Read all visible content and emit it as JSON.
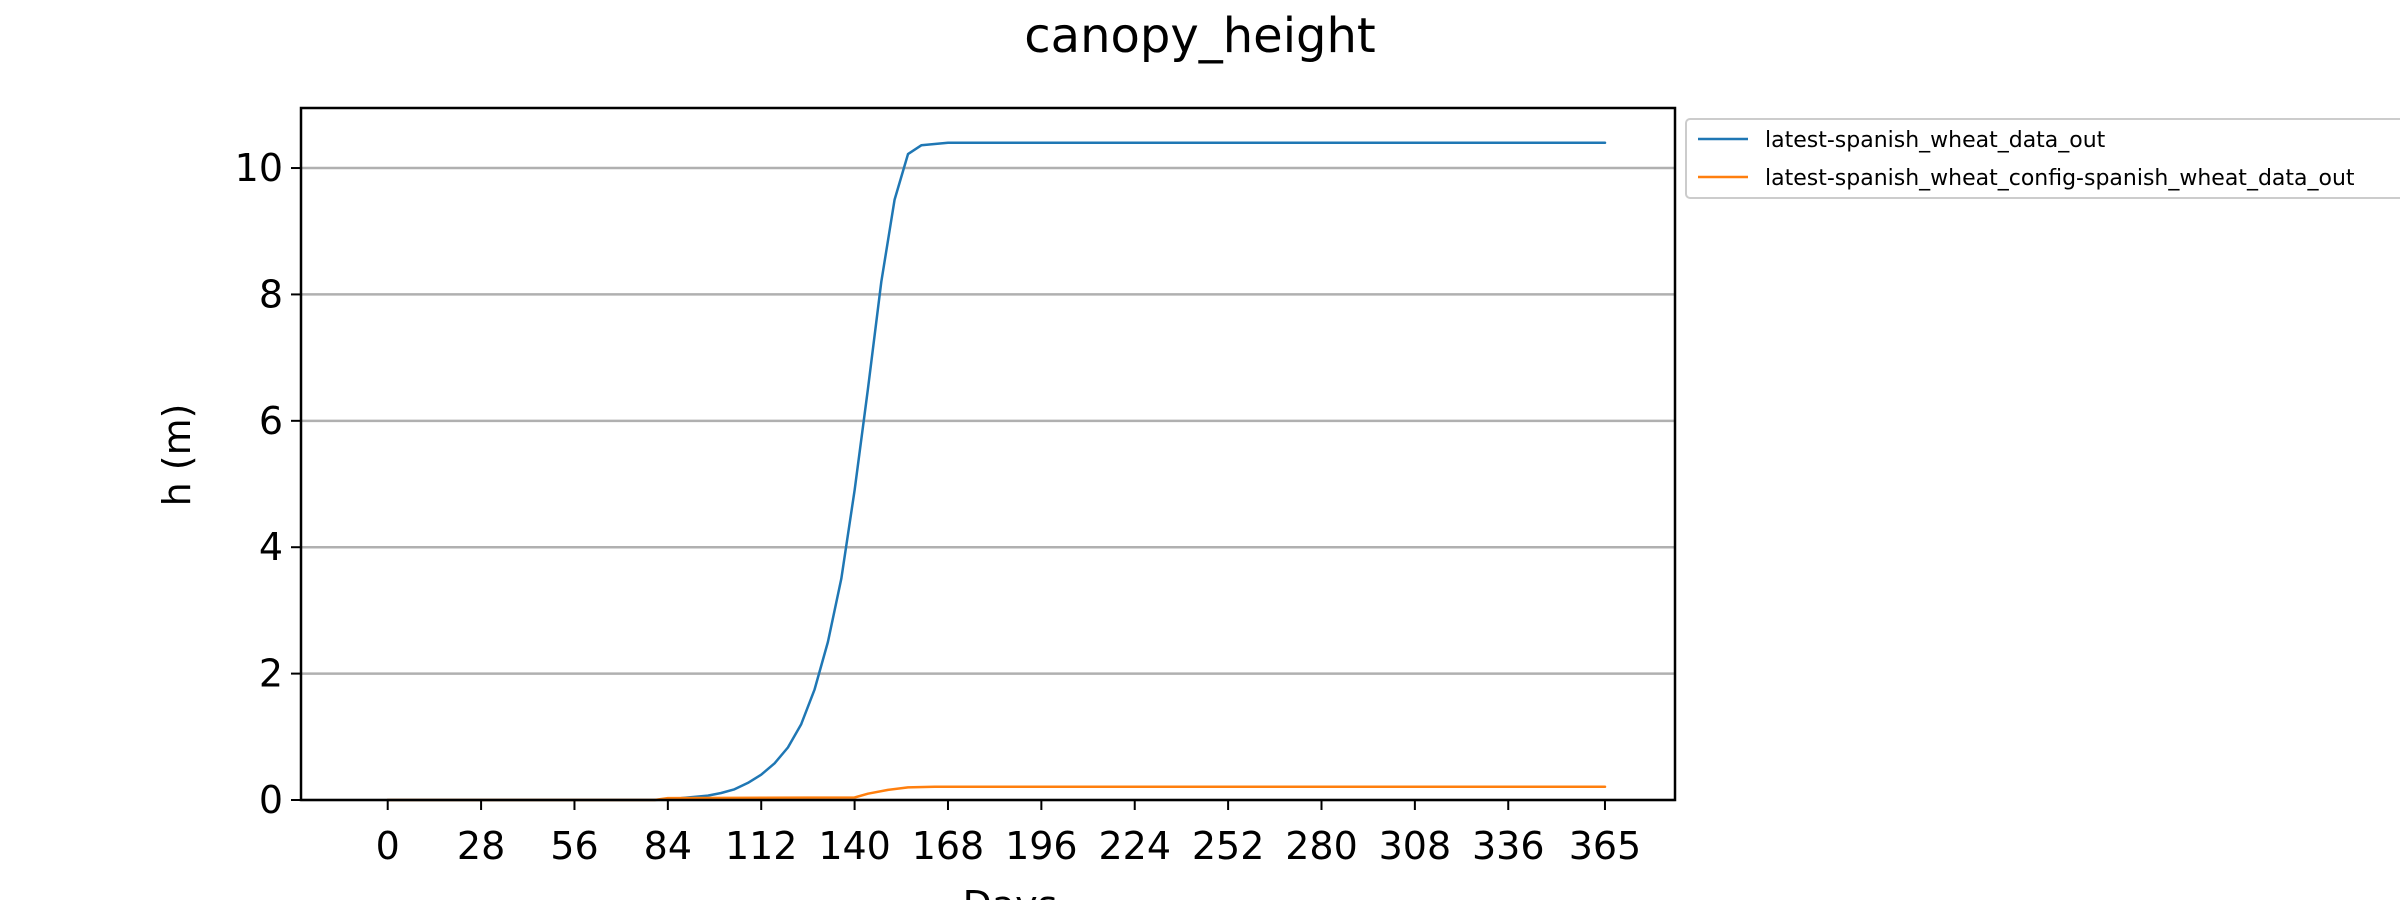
{
  "chart_data": {
    "type": "line",
    "title": "canopy_height",
    "xlabel": "Days",
    "ylabel": "h (m)",
    "xlim": [
      -26,
      386
    ],
    "ylim": [
      0,
      10.95
    ],
    "xticks": [
      0,
      28,
      56,
      84,
      112,
      140,
      168,
      196,
      224,
      252,
      280,
      308,
      336,
      365
    ],
    "xtick_labels": [
      "0",
      "28",
      "56",
      "84",
      "112",
      "140",
      "168",
      "196",
      "224",
      "252",
      "280",
      "308",
      "336",
      "365"
    ],
    "yticks": [
      0,
      2,
      4,
      6,
      8,
      10
    ],
    "ytick_labels": [
      "0",
      "2",
      "4",
      "6",
      "8",
      "10"
    ],
    "grid": "horizontal",
    "legend_position": "outside-top-right",
    "series": [
      {
        "name": "latest-spanish_wheat_data_out",
        "color": "#1f77b4",
        "points": [
          [
            0,
            0
          ],
          [
            80,
            0
          ],
          [
            88,
            0.03
          ],
          [
            96,
            0.07
          ],
          [
            100,
            0.11
          ],
          [
            104,
            0.17
          ],
          [
            108,
            0.27
          ],
          [
            112,
            0.4
          ],
          [
            116,
            0.58
          ],
          [
            120,
            0.83
          ],
          [
            124,
            1.2
          ],
          [
            128,
            1.75
          ],
          [
            132,
            2.5
          ],
          [
            136,
            3.5
          ],
          [
            140,
            4.9
          ],
          [
            144,
            6.5
          ],
          [
            148,
            8.2
          ],
          [
            152,
            9.5
          ],
          [
            156,
            10.22
          ],
          [
            160,
            10.36
          ],
          [
            168,
            10.4
          ],
          [
            365,
            10.4
          ]
        ]
      },
      {
        "name": "latest-spanish_wheat_config-spanish_wheat_data_out",
        "color": "#ff7f0e",
        "points": [
          [
            0,
            0
          ],
          [
            80,
            0
          ],
          [
            84,
            0.03
          ],
          [
            140,
            0.04
          ],
          [
            144,
            0.1
          ],
          [
            150,
            0.16
          ],
          [
            156,
            0.2
          ],
          [
            164,
            0.21
          ],
          [
            365,
            0.21
          ]
        ]
      }
    ]
  }
}
